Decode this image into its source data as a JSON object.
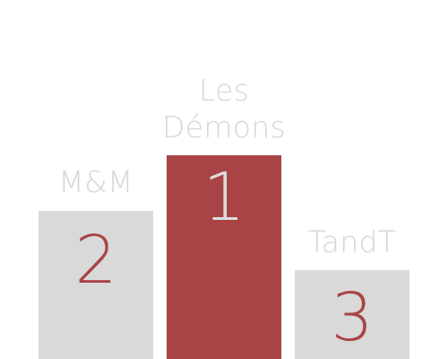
{
  "podium": {
    "first": {
      "team": "Les\nDémons",
      "rank": "1"
    },
    "second": {
      "team": "M&M",
      "rank": "2"
    },
    "third": {
      "team": "TandT",
      "rank": "3"
    }
  },
  "colors": {
    "winner_block": "#a94446",
    "other_block": "#d9d9d9",
    "label_text": "#d6d6d6",
    "winner_rank_text": "#dcdcdc",
    "other_rank_text": "#a94446"
  }
}
